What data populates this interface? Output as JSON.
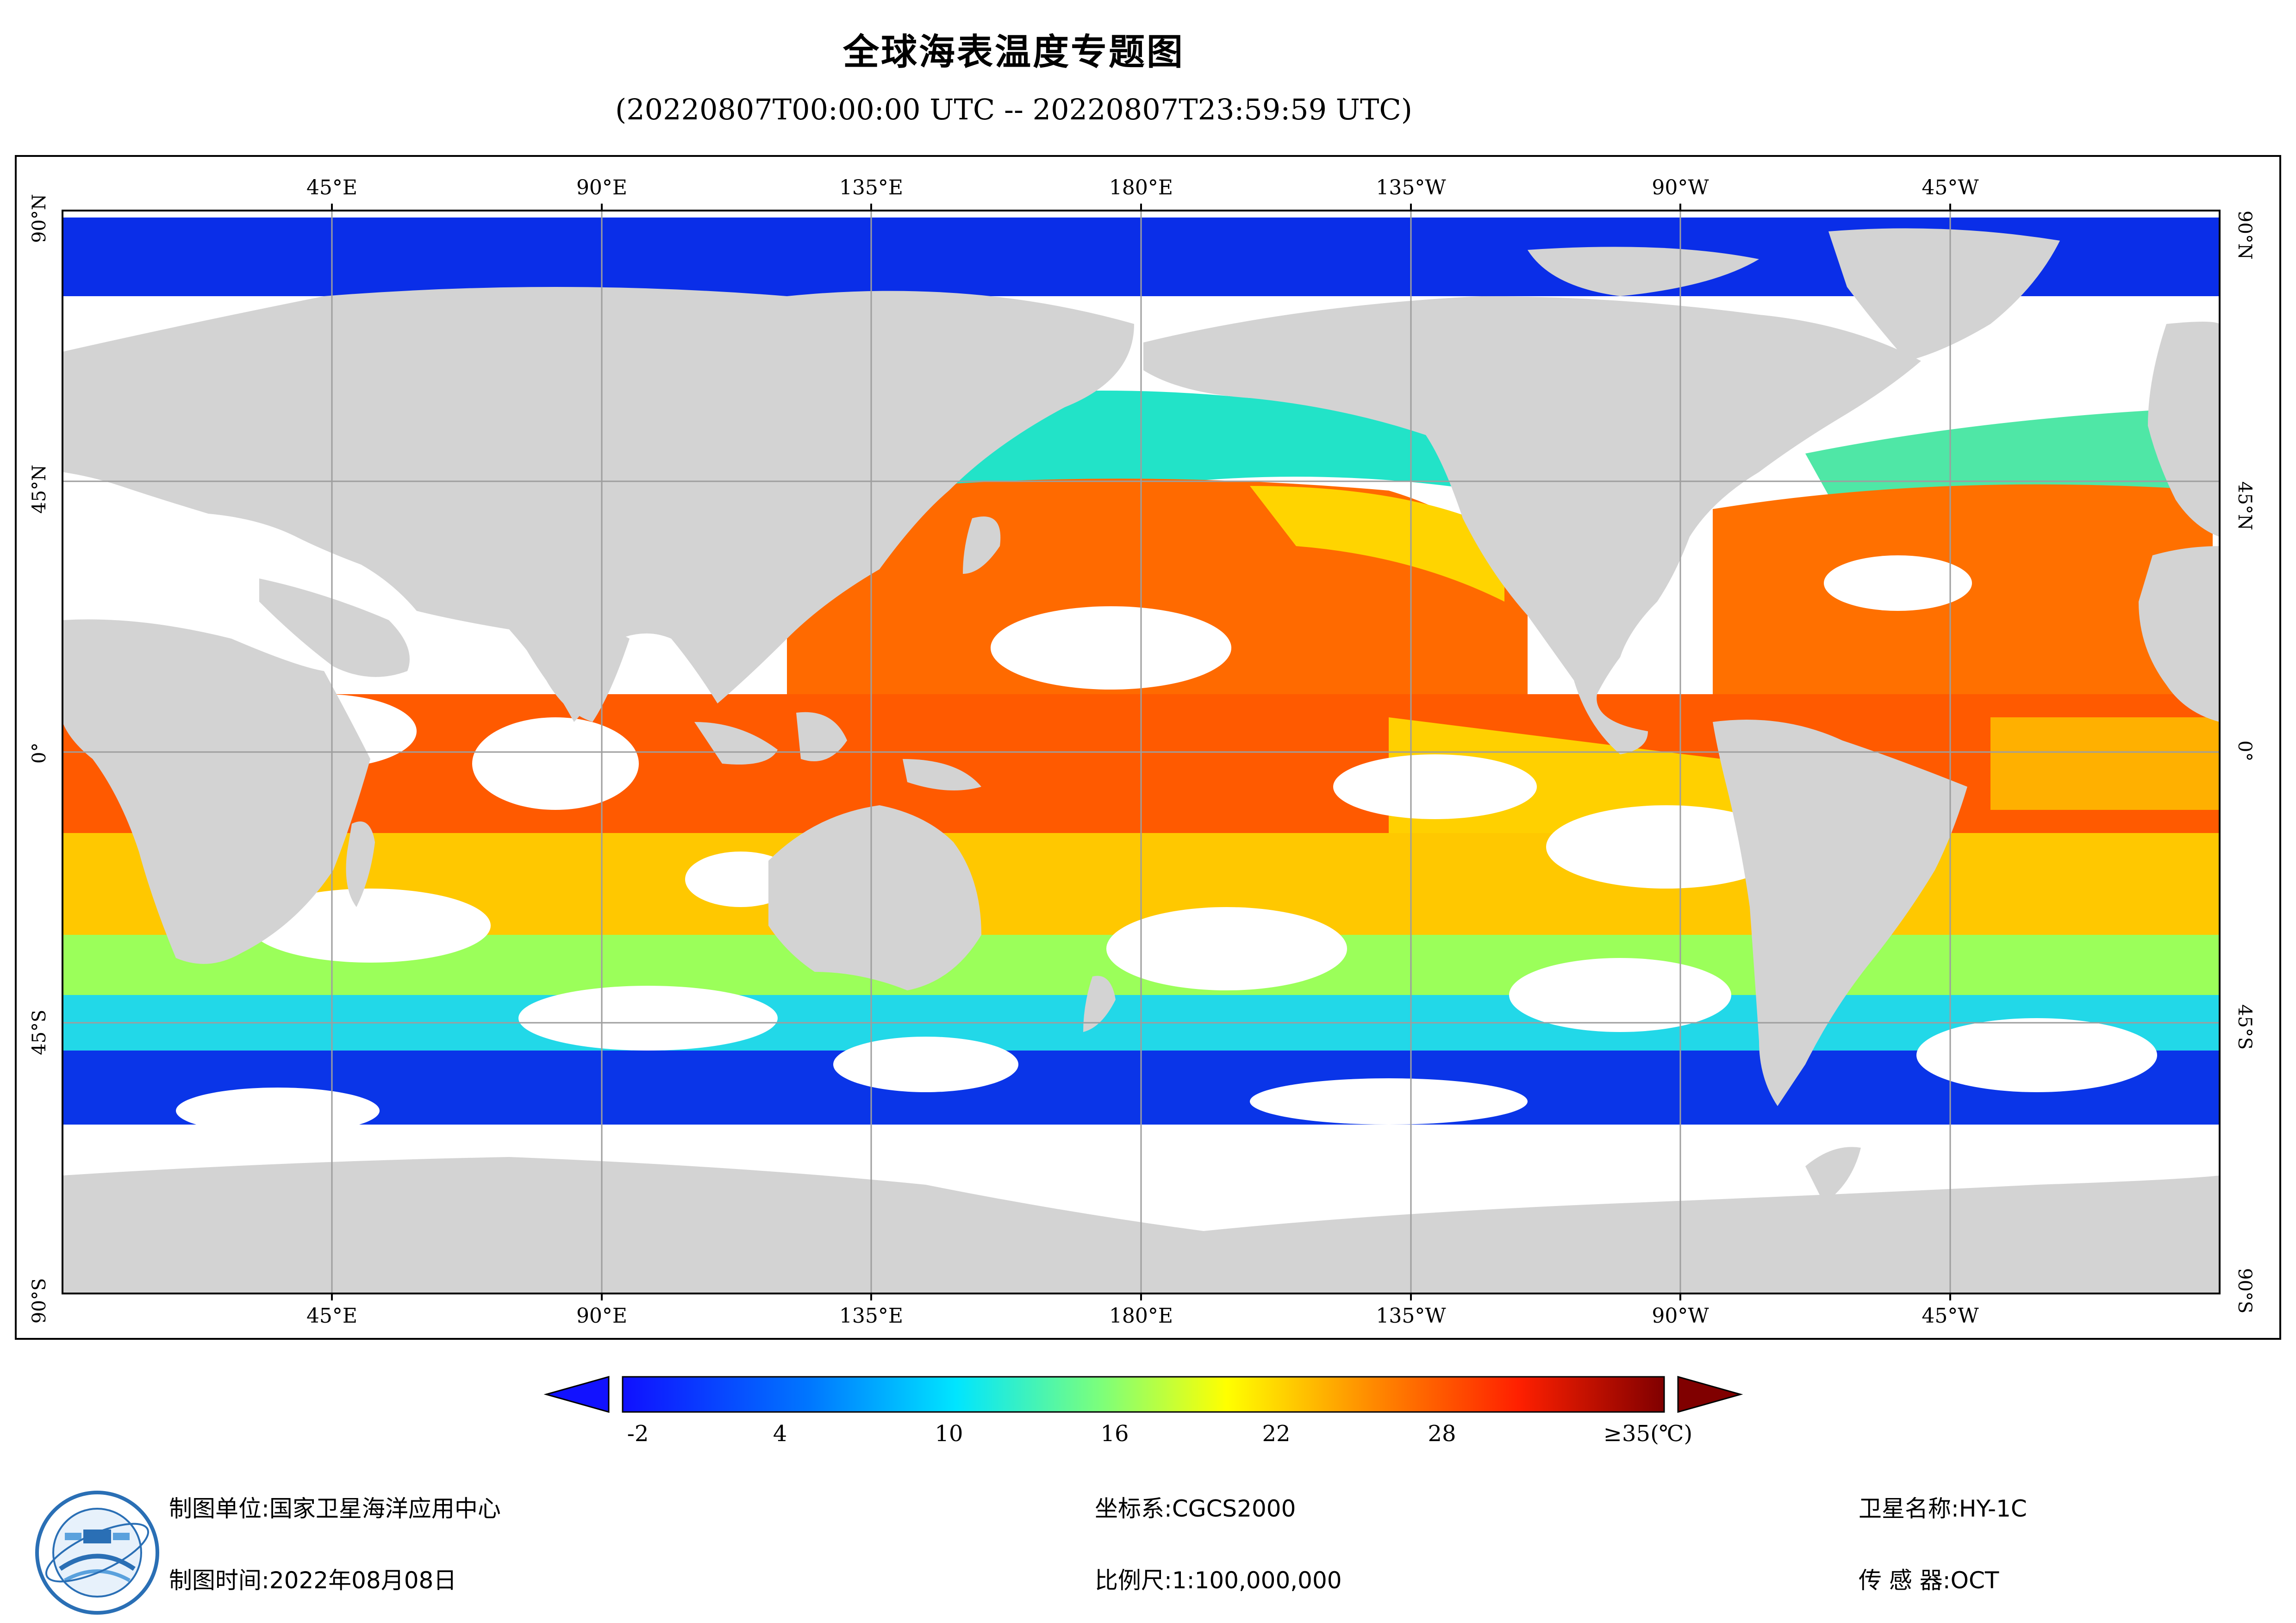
{
  "header": {
    "title": "全球海表温度专题图",
    "time_range": "(20220807T00:00:00 UTC -- 20220807T23:59:59 UTC)"
  },
  "map": {
    "top_lon_labels": [
      "45°E",
      "90°E",
      "135°E",
      "180°E",
      "135°W",
      "90°W",
      "45°W"
    ],
    "bottom_lon_labels": [
      "45°E",
      "90°E",
      "135°E",
      "180°E",
      "135°W",
      "90°W",
      "45°W"
    ],
    "lat_labels": [
      "90°N",
      "45°N",
      "0°",
      "45°S",
      "90°S"
    ],
    "colors": {
      "land": "#d3d3d3",
      "ocean_missing": "#ffffff",
      "grid": "#9e9e9e",
      "frame": "#000000"
    }
  },
  "colorbar": {
    "ticks": [
      "-2",
      "4",
      "10",
      "16",
      "22",
      "28",
      "≥35(℃)"
    ],
    "min_arrow_color": "#1212ff",
    "max_arrow_color": "#800000"
  },
  "footer": {
    "org_label": "制图单位:国家卫星海洋应用中心",
    "date_label": "制图时间:2022年08月08日",
    "crs_label": "坐标系:CGCS2000",
    "scale_label": "比例尺:1:100,000,000",
    "satellite_label": "卫星名称:HY-1C",
    "sensor_label": "传 感 器:OCT"
  },
  "logo": {
    "icon": "satellite-agency-logo-icon"
  }
}
